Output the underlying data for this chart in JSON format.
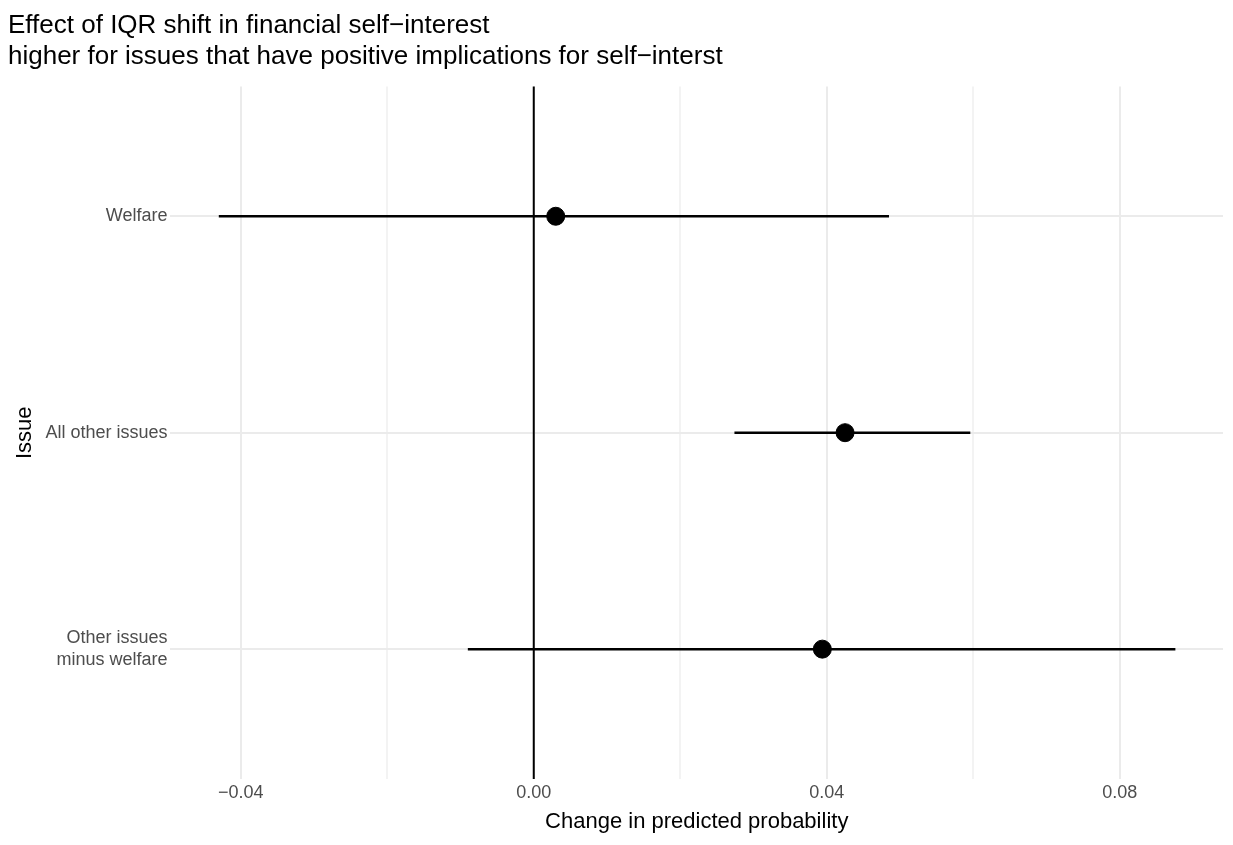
{
  "chart_data": {
    "type": "scatter",
    "orientation": "horizontal",
    "title": "Effect of IQR shift in financial self−interest\nhigher for issues that have positive implications for self−interst",
    "xlabel": "Change in predicted probability",
    "ylabel": "Issue",
    "categories": [
      "Welfare",
      "All other issues",
      "Other issues\nminus welfare"
    ],
    "series": [
      {
        "color": "#000000",
        "values": [
          0.003,
          0.0425,
          0.0394
        ],
        "errors": [
          [
            -0.043,
            0.0485
          ],
          [
            0.0274,
            0.0596
          ],
          [
            -0.009,
            0.0876
          ]
        ]
      }
    ],
    "xlim": [
      -0.0496,
      0.0941
    ],
    "xticks": [
      {
        "value": -0.04,
        "label": "−0.04"
      },
      {
        "value": -0.02,
        "label": null
      },
      {
        "value": 0,
        "label": "0.00"
      },
      {
        "value": 0.02,
        "label": null
      },
      {
        "value": 0.04,
        "label": "0.04"
      },
      {
        "value": 0.06,
        "label": null
      },
      {
        "value": 0.08,
        "label": "0.08"
      }
    ],
    "ref_lines": [
      {
        "axis": "x",
        "value": 0,
        "color": "#000000"
      }
    ],
    "grid": true,
    "marker": "circle"
  }
}
